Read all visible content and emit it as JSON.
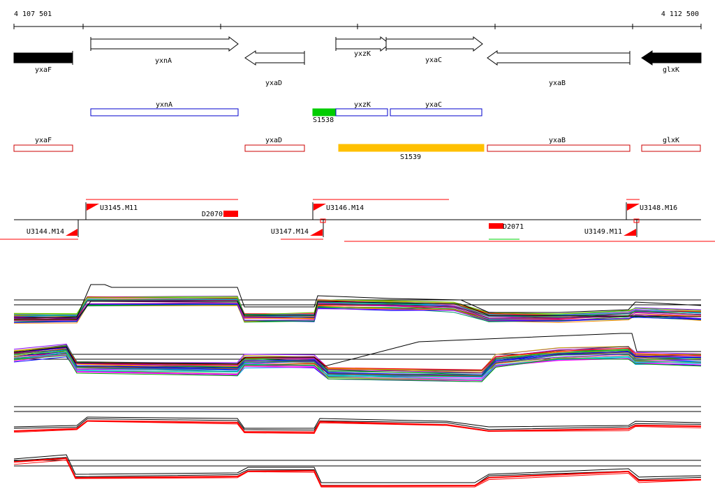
{
  "coordinates": {
    "start_label": "4 107 501",
    "end_label": "4 112 500"
  },
  "annotated_genes": [
    {
      "name": "yxaF",
      "strand": "-",
      "filled": true
    },
    {
      "name": "yxnA",
      "strand": "+",
      "filled": false
    },
    {
      "name": "yxaD",
      "strand": "-",
      "filled": false
    },
    {
      "name": "yxzK",
      "strand": "+",
      "filled": false
    },
    {
      "name": "yxaC",
      "strand": "+",
      "filled": false
    },
    {
      "name": "yxaB",
      "strand": "-",
      "filled": false
    },
    {
      "name": "glxK",
      "strand": "-",
      "filled": true
    }
  ],
  "forward_segments": [
    {
      "name": "yxnA",
      "color": "#0000cc"
    },
    {
      "name": "S1538",
      "color": "#00cc00",
      "filled": true
    },
    {
      "name": "yxzK",
      "color": "#0000cc"
    },
    {
      "name": "yxaC",
      "color": "#0000cc"
    }
  ],
  "reverse_segments": [
    {
      "name": "yxaF",
      "color": "#cc0000"
    },
    {
      "name": "yxaD",
      "color": "#cc0000"
    },
    {
      "name": "S1539",
      "color": "#ffc000",
      "filled": true
    },
    {
      "name": "yxaB",
      "color": "#cc0000"
    },
    {
      "name": "glxK",
      "color": "#cc0000"
    }
  ],
  "forward_upshifts": [
    "U3145.M11",
    "U3146.M14",
    "U3148.M16"
  ],
  "reverse_upshifts": [
    "U3144.M14",
    "U3147.M14",
    "U3149.M11"
  ],
  "downshifts": [
    "D2070",
    "D2071"
  ],
  "colors": {
    "forward_outline": "#0000cc",
    "reverse_outline": "#cc0000",
    "new_forward": "#00cc00",
    "new_reverse": "#ffc000",
    "shift_marker": "#ff0000",
    "profile_red": "#ff0000"
  }
}
